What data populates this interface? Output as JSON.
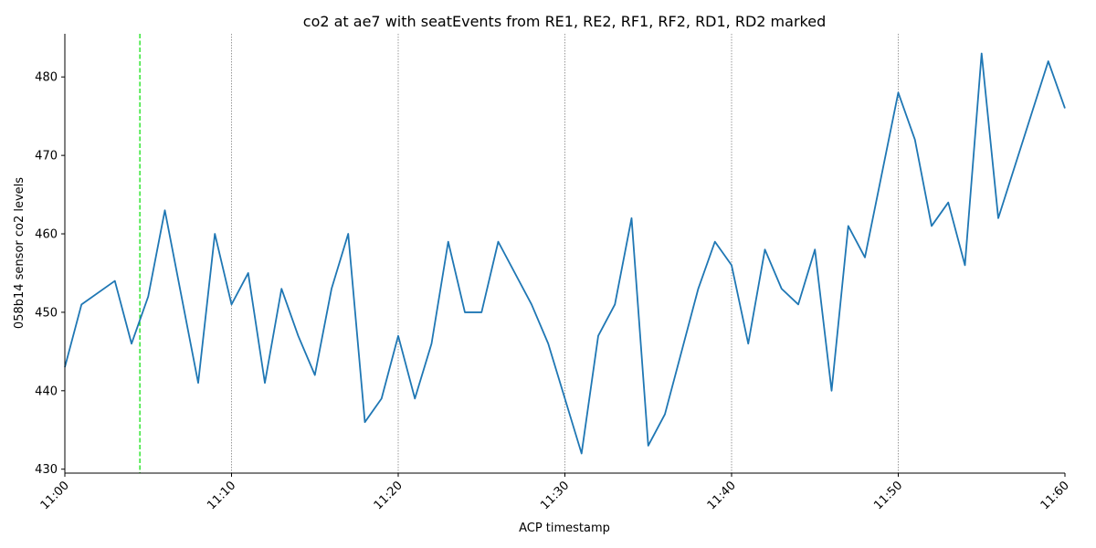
{
  "chart_data": {
    "type": "line",
    "title": "co2 at ae7 with seatEvents from RE1, RE2, RF1, RF2, RD1, RD2 marked",
    "xlabel": "ACP timestamp",
    "ylabel": "058b14 sensor co2 levels",
    "xlim": [
      "11:00",
      "11:60"
    ],
    "ylim": [
      429.5,
      485.5
    ],
    "x_ticks": [
      "11:00",
      "11:10",
      "11:20",
      "11:30",
      "11:40",
      "11:50",
      "11:60"
    ],
    "y_ticks": [
      430,
      440,
      450,
      460,
      470,
      480
    ],
    "grid": "vertical dotted lines at x ticks",
    "series": [
      {
        "color": "#1f77b4",
        "x": [
          "11:00",
          "11:01",
          "11:03",
          "11:04",
          "11:05",
          "11:06",
          "11:08",
          "11:09",
          "11:10",
          "11:11",
          "11:12",
          "11:13",
          "11:14",
          "11:15",
          "11:16",
          "11:17",
          "11:18",
          "11:19",
          "11:20",
          "11:21",
          "11:22",
          "11:23",
          "11:24",
          "11:25",
          "11:26",
          "11:28",
          "11:29",
          "11:31",
          "11:32",
          "11:33",
          "11:34",
          "11:35",
          "11:36",
          "11:38",
          "11:39",
          "11:40",
          "11:41",
          "11:42",
          "11:43",
          "11:44",
          "11:45",
          "11:46",
          "11:47",
          "11:48",
          "11:50",
          "11:51",
          "11:52",
          "11:53",
          "11:54",
          "11:55",
          "11:56",
          "11:59",
          "11:60"
        ],
        "values": [
          443,
          451,
          454,
          446,
          452,
          463,
          441,
          460,
          451,
          455,
          441,
          453,
          447,
          442,
          453,
          460,
          436,
          439,
          447,
          439,
          446,
          459,
          450,
          450,
          459,
          451,
          446,
          432,
          447,
          451,
          462,
          433,
          437,
          453,
          459,
          456,
          446,
          458,
          453,
          451,
          458,
          440,
          461,
          457,
          478,
          472,
          461,
          464,
          456,
          483,
          462,
          482,
          476
        ]
      }
    ],
    "markers": [
      {
        "x": "11:04:30",
        "color": "#00e000",
        "style": "dashed"
      }
    ]
  }
}
